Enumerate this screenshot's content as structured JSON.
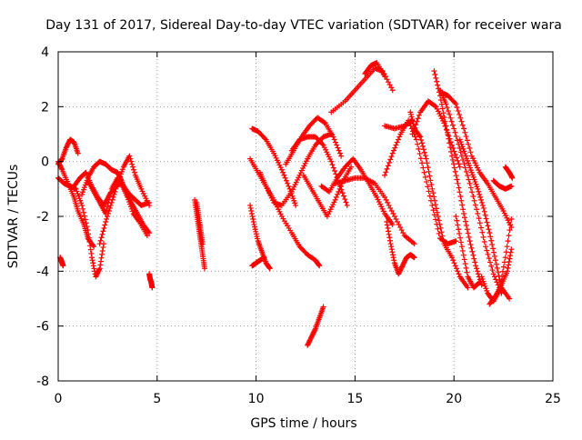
{
  "chart_data": {
    "type": "scatter",
    "title": "Day 131 of 2017, Sidereal Day-to-day VTEC variation (SDTVAR) for receiver wara",
    "xlabel": "GPS time / hours",
    "ylabel": "SDTVAR / TECUs",
    "xlim": [
      0,
      25
    ],
    "ylim": [
      -8,
      4
    ],
    "x_ticks": [
      0,
      5,
      10,
      15,
      20,
      25
    ],
    "y_ticks": [
      -8,
      -6,
      -4,
      -2,
      0,
      2,
      4
    ],
    "x_tick_labels": [
      "0",
      "5",
      "10",
      "15",
      "20",
      "25"
    ],
    "y_tick_labels": [
      "-8",
      "-6",
      "-4",
      "-2",
      "0",
      "2",
      "4"
    ],
    "grid": true,
    "marker": "+",
    "marker_color": "#ff0000",
    "series": [
      {
        "x": [
          0.0,
          0.2,
          0.4,
          0.6,
          0.8,
          1.0
        ],
        "y": [
          -0.1,
          0.1,
          0.5,
          0.8,
          0.7,
          0.3
        ]
      },
      {
        "x": [
          0.0,
          0.2,
          0.5,
          0.8,
          1.0,
          1.3,
          1.5,
          1.8
        ],
        "y": [
          0.0,
          -0.3,
          -0.8,
          -1.3,
          -1.8,
          -2.3,
          -2.8,
          -3.1
        ]
      },
      {
        "x": [
          0.0,
          0.3,
          0.6,
          0.9,
          1.2,
          1.5,
          1.7,
          1.9,
          2.1,
          2.3
        ],
        "y": [
          -0.6,
          -0.8,
          -0.9,
          -1.0,
          -1.6,
          -2.5,
          -3.5,
          -4.2,
          -3.9,
          -3.0
        ]
      },
      {
        "x": [
          1.2,
          1.5,
          1.8,
          2.1,
          2.4,
          2.7,
          3.0,
          3.2,
          3.4,
          3.7,
          4.0,
          4.3,
          4.6
        ],
        "y": [
          -1.2,
          -0.6,
          -0.2,
          0.0,
          -0.1,
          -0.3,
          -0.4,
          -0.7,
          -1.1,
          -1.5,
          -1.9,
          -2.3,
          -2.6
        ]
      },
      {
        "x": [
          0.8,
          1.1,
          1.4,
          1.7,
          2.0,
          2.3,
          2.6,
          2.9,
          3.2,
          3.5,
          3.8,
          4.1,
          4.5
        ],
        "y": [
          -0.9,
          -0.6,
          -0.4,
          -0.9,
          -1.3,
          -1.6,
          -1.2,
          -0.9,
          -0.8,
          -1.3,
          -1.9,
          -2.2,
          -2.7
        ]
      },
      {
        "x": [
          1.5,
          1.8,
          2.1,
          2.4,
          2.7,
          3.0,
          3.3,
          3.6,
          3.9,
          4.2,
          4.6
        ],
        "y": [
          -0.7,
          -1.1,
          -1.5,
          -1.9,
          -1.0,
          -0.6,
          -0.9,
          -1.2,
          -1.4,
          -1.6,
          -1.5
        ]
      },
      {
        "x": [
          2.1,
          2.4,
          2.7,
          3.0,
          3.3,
          3.6,
          3.9,
          4.2,
          4.6
        ],
        "y": [
          -3.0,
          -2.2,
          -1.5,
          -0.8,
          -0.2,
          0.2,
          -0.5,
          -1.0,
          -1.6
        ]
      },
      {
        "x": [
          0.1,
          0.15,
          0.2,
          0.25
        ],
        "y": [
          -3.5,
          -3.6,
          -3.7,
          -3.8
        ]
      },
      {
        "x": [
          4.6,
          4.65,
          4.7,
          4.75
        ],
        "y": [
          -4.1,
          -4.3,
          -4.4,
          -4.6
        ]
      },
      {
        "x": [
          6.9,
          7.0,
          7.1,
          7.2,
          7.3,
          7.4
        ],
        "y": [
          -1.4,
          -1.9,
          -2.4,
          -2.9,
          -3.4,
          -3.9
        ]
      },
      {
        "x": [
          7.0,
          7.1,
          7.2,
          7.3
        ],
        "y": [
          -1.5,
          -2.0,
          -2.5,
          -3.0
        ]
      },
      {
        "x": [
          9.7,
          9.9,
          10.1,
          10.3,
          10.5,
          10.7
        ],
        "y": [
          -1.6,
          -2.3,
          -2.9,
          -3.3,
          -3.7,
          -3.9
        ]
      },
      {
        "x": [
          9.8,
          10.0,
          10.2,
          10.4
        ],
        "y": [
          -3.8,
          -3.7,
          -3.6,
          -3.5
        ]
      },
      {
        "x": [
          9.8,
          10.1,
          10.5,
          10.9,
          11.3,
          11.7,
          12.0
        ],
        "y": [
          1.2,
          1.1,
          0.8,
          0.3,
          -0.3,
          -1.0,
          -1.6
        ]
      },
      {
        "x": [
          9.7,
          10.1,
          10.5,
          10.9,
          11.3,
          11.8,
          12.2,
          12.6,
          13.0,
          13.2
        ],
        "y": [
          0.1,
          -0.4,
          -0.9,
          -1.4,
          -2.0,
          -2.6,
          -3.1,
          -3.4,
          -3.6,
          -3.8
        ]
      },
      {
        "x": [
          10.2,
          10.5,
          10.9,
          11.3,
          11.8,
          12.2,
          12.6,
          13.0,
          13.4,
          13.8
        ],
        "y": [
          -0.4,
          -0.9,
          -1.5,
          -1.6,
          -1.1,
          -0.5,
          0.1,
          0.6,
          0.9,
          1.0
        ]
      },
      {
        "x": [
          11.5,
          11.9,
          12.3,
          12.7,
          13.1,
          13.5,
          13.9,
          14.3
        ],
        "y": [
          -0.1,
          0.4,
          0.9,
          1.3,
          1.6,
          1.4,
          0.9,
          0.2
        ]
      },
      {
        "x": [
          11.8,
          12.2,
          12.6,
          13.0,
          13.4,
          13.8,
          14.2,
          14.6
        ],
        "y": [
          0.4,
          0.8,
          0.9,
          0.9,
          0.6,
          0.0,
          -0.8,
          -1.6
        ]
      },
      {
        "x": [
          12.4,
          12.8,
          13.2,
          13.6,
          14.0,
          14.4,
          14.8
        ],
        "y": [
          -0.5,
          -1.0,
          -1.5,
          -2.0,
          -1.4,
          -0.7,
          -0.2
        ]
      },
      {
        "x": [
          12.6,
          12.8,
          13.0,
          13.2,
          13.4
        ],
        "y": [
          -6.7,
          -6.4,
          -6.1,
          -5.7,
          -5.3
        ]
      },
      {
        "x": [
          13.8,
          14.5,
          15.0,
          15.5,
          16.0,
          16.4,
          16.9
        ],
        "y": [
          1.8,
          2.2,
          2.6,
          3.0,
          3.4,
          3.3,
          2.6
        ]
      },
      {
        "x": [
          15.5,
          15.8,
          16.1,
          16.5
        ],
        "y": [
          3.2,
          3.5,
          3.6,
          3.1
        ]
      },
      {
        "x": [
          13.3,
          13.7,
          14.1,
          14.5,
          14.9,
          15.3,
          15.7,
          16.1,
          16.5,
          16.9
        ],
        "y": [
          -0.9,
          -1.1,
          -0.6,
          -0.2,
          0.1,
          -0.3,
          -0.8,
          -1.3,
          -1.9,
          -2.3
        ]
      },
      {
        "x": [
          14.0,
          14.5,
          15.0,
          15.5,
          16.0,
          16.5,
          17.0,
          17.5,
          18.0
        ],
        "y": [
          -0.8,
          -0.7,
          -0.6,
          -0.6,
          -0.8,
          -1.3,
          -2.0,
          -2.7,
          -3.0
        ]
      },
      {
        "x": [
          16.5,
          16.9,
          17.3,
          17.7,
          18.1,
          18.5,
          18.9,
          19.3,
          19.7,
          20.1
        ],
        "y": [
          -0.5,
          0.3,
          1.0,
          1.5,
          0.8,
          -0.4,
          -1.6,
          -2.8,
          -3.0,
          -2.9
        ]
      },
      {
        "x": [
          16.5,
          17.0,
          17.5,
          17.9
        ],
        "y": [
          1.3,
          1.2,
          1.3,
          1.5
        ]
      },
      {
        "x": [
          16.6,
          16.8,
          17.0,
          17.2,
          17.4,
          17.6,
          17.8,
          18.0
        ],
        "y": [
          -2.2,
          -3.0,
          -3.7,
          -4.1,
          -3.8,
          -3.5,
          -3.4,
          -3.5
        ]
      },
      {
        "x": [
          17.8,
          18.0,
          18.3,
          18.6,
          18.9,
          19.2,
          19.5,
          19.9,
          20.3,
          20.7
        ],
        "y": [
          1.8,
          1.2,
          0.9,
          0.1,
          -1.0,
          -2.0,
          -3.0,
          -3.5,
          -4.2,
          -4.6
        ]
      },
      {
        "x": [
          17.9,
          18.3,
          18.7,
          19.1,
          19.5,
          19.9,
          20.3
        ],
        "y": [
          1.0,
          1.8,
          2.2,
          2.0,
          1.4,
          0.6,
          -0.2
        ]
      },
      {
        "x": [
          19.0,
          19.3,
          19.6,
          19.9,
          20.2,
          20.5,
          20.8,
          21.1,
          21.4
        ],
        "y": [
          3.3,
          2.4,
          1.3,
          0.2,
          -0.8,
          -1.9,
          -2.9,
          -3.8,
          -4.5
        ]
      },
      {
        "x": [
          19.3,
          19.6,
          20.0,
          20.4,
          20.8,
          21.2,
          21.6,
          22.0,
          22.4
        ],
        "y": [
          2.6,
          2.1,
          1.2,
          0.2,
          -0.8,
          -1.9,
          -3.1,
          -4.1,
          -4.8
        ]
      },
      {
        "x": [
          19.4,
          19.7,
          20.1,
          20.5,
          20.9,
          21.3,
          21.7,
          22.1,
          22.5,
          22.9
        ],
        "y": [
          2.5,
          2.4,
          2.1,
          1.2,
          0.2,
          -0.4,
          -0.8,
          -1.3,
          -1.8,
          -2.4
        ]
      },
      {
        "x": [
          20.3,
          20.6,
          20.9,
          21.2,
          21.5,
          21.8,
          22.1,
          22.4,
          22.8
        ],
        "y": [
          0.8,
          0.2,
          -0.4,
          -1.0,
          -1.7,
          -2.6,
          -3.6,
          -4.6,
          -5.0
        ]
      },
      {
        "x": [
          21.4,
          21.7,
          22.0,
          22.3,
          22.6,
          22.9
        ],
        "y": [
          -4.2,
          -4.8,
          -5.1,
          -4.7,
          -3.5,
          -2.1
        ]
      },
      {
        "x": [
          21.8,
          22.1,
          22.4,
          22.7,
          22.9
        ],
        "y": [
          -5.2,
          -4.9,
          -4.5,
          -4.0,
          -3.2
        ]
      },
      {
        "x": [
          22.0,
          22.3,
          22.6,
          22.9
        ],
        "y": [
          -0.7,
          -0.9,
          -1.0,
          -0.9
        ]
      },
      {
        "x": [
          22.6,
          22.8,
          22.95
        ],
        "y": [
          -0.2,
          -0.4,
          -0.6
        ]
      },
      {
        "x": [
          20.1,
          20.4,
          20.7,
          21.0,
          21.3
        ],
        "y": [
          -2.0,
          -3.1,
          -4.2,
          -4.6,
          -4.4
        ]
      }
    ]
  }
}
